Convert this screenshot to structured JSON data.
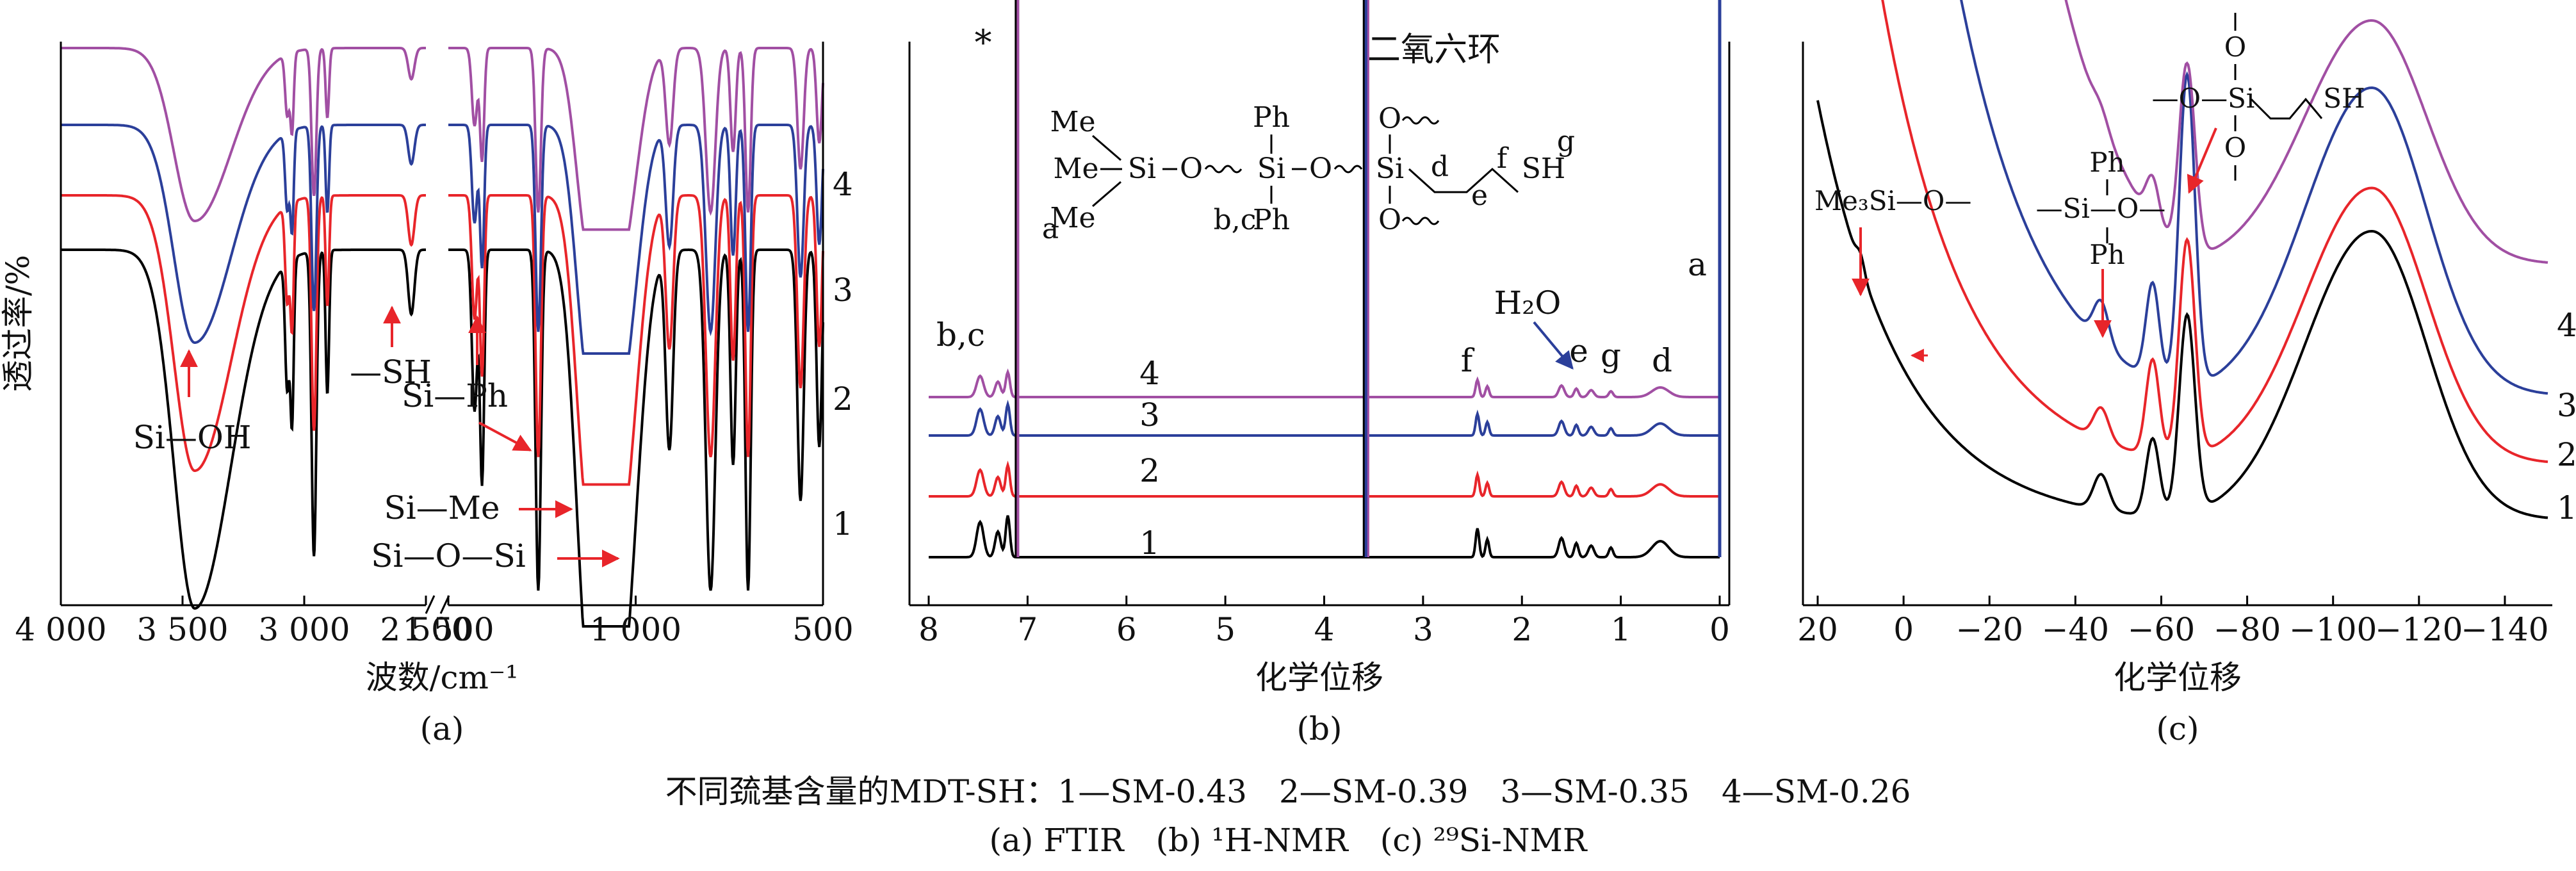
{
  "colors": {
    "series1": "#000000",
    "series2": "#e8252a",
    "series3": "#2b3f9a",
    "series4": "#a14fa3",
    "annotation_arrow": "#e8252a",
    "axis": "#000000"
  },
  "caption": {
    "line1": "不同巯基含量的MDT-SH：1—SM-0.43　2—SM-0.39　3—SM-0.35　4—SM-0.26",
    "line2": "(a) FTIR　(b) ¹H-NMR　(c) ²⁹Si-NMR"
  },
  "chart_data": [
    {
      "panel": "(a)",
      "type": "line",
      "title": "",
      "xlabel": "波数/cm⁻¹",
      "ylabel": "透过率/%",
      "x_reversed": true,
      "x_broken_axis": [
        2500,
        1500
      ],
      "xlim": [
        4000,
        500
      ],
      "x_ticks": [
        "4 000",
        "3 500",
        "3 000",
        "2 500",
        "1 500",
        "1 000",
        "500"
      ],
      "x_tick_values": [
        4000,
        3500,
        3000,
        2500,
        1500,
        1000,
        500
      ],
      "series_labels": [
        "1",
        "2",
        "3",
        "4"
      ],
      "series": [
        {
          "name": "1",
          "color": "series1",
          "offset": 0
        },
        {
          "name": "2",
          "color": "series2",
          "offset": 1
        },
        {
          "name": "3",
          "color": "series3",
          "offset": 2
        },
        {
          "name": "4",
          "color": "series4",
          "offset": 3
        }
      ],
      "annotations": [
        "Si—OH",
        "—SH",
        "Si—Ph",
        "Si—Me",
        "Si—O—Si"
      ]
    },
    {
      "panel": "(b)",
      "type": "line",
      "title": "",
      "xlabel": "化学位移",
      "ylabel": "",
      "x_reversed": true,
      "xlim": [
        8,
        0
      ],
      "x_ticks": [
        "8",
        "7",
        "6",
        "5",
        "4",
        "3",
        "2",
        "1",
        "0"
      ],
      "series_labels": [
        "1",
        "2",
        "3",
        "4"
      ],
      "series": [
        {
          "name": "1",
          "color": "series1"
        },
        {
          "name": "2",
          "color": "series2"
        },
        {
          "name": "3",
          "color": "series3"
        },
        {
          "name": "4",
          "color": "series4"
        }
      ],
      "peak_labels": [
        "b,c",
        "*",
        "二氧六环",
        "f",
        "H₂O",
        "e",
        "g",
        "d",
        "a"
      ],
      "structure_labels": {
        "me1": "Me",
        "me2": "Me",
        "me3": "Me",
        "si1": "Si",
        "o1": "O",
        "ph1": "Ph",
        "si2": "Si",
        "o2": "O",
        "ph2": "Ph",
        "si3": "Si",
        "o3": "O",
        "o4": "O",
        "d": "d",
        "e": "e",
        "f": "f",
        "sh": "SH",
        "g": "g",
        "a": "a",
        "bc": "b,c"
      }
    },
    {
      "panel": "(c)",
      "type": "line",
      "title": "",
      "xlabel": "化学位移",
      "ylabel": "",
      "x_reversed": true,
      "xlim": [
        20,
        -150
      ],
      "x_ticks": [
        "20",
        "0",
        "−20",
        "−40",
        "−60",
        "−80",
        "−100",
        "−120",
        "−140"
      ],
      "series_labels": [
        "1",
        "2",
        "3",
        "4"
      ],
      "series": [
        {
          "name": "1",
          "color": "series1"
        },
        {
          "name": "2",
          "color": "series2"
        },
        {
          "name": "3",
          "color": "series3"
        },
        {
          "name": "4",
          "color": "series4"
        }
      ],
      "structure_labels": {
        "m_unit": "Me₃Si—O—",
        "d_unit_ph_top": "Ph",
        "d_unit_si": "—Si—O—",
        "d_unit_ph_bottom": "Ph",
        "t_unit_o_left": "—O—Si",
        "t_unit_sh": "SH",
        "t_unit_o_top": "O",
        "t_unit_o_bottom": "O"
      }
    }
  ]
}
